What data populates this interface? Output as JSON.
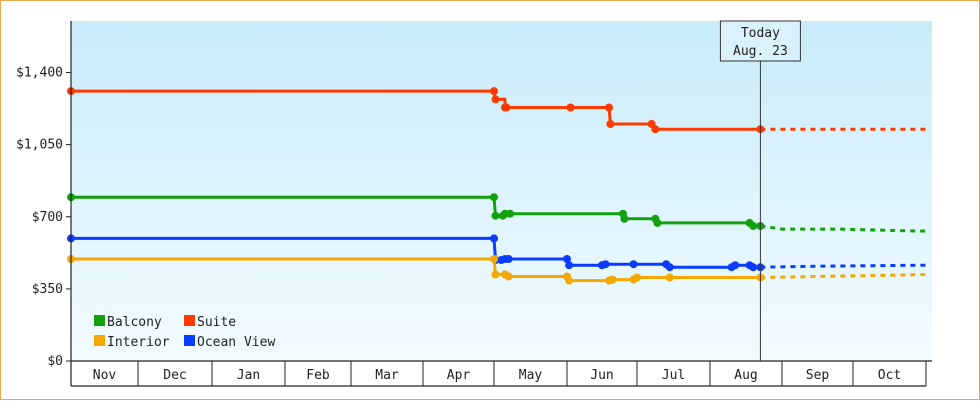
{
  "chart_data": {
    "type": "line",
    "x_axis": {
      "months": [
        "Nov",
        "Dec",
        "Jan",
        "Feb",
        "Mar",
        "Apr",
        "May",
        "Jun",
        "Jul",
        "Aug",
        "Sep",
        "Oct"
      ]
    },
    "y_axis": {
      "ticks": [
        "$0",
        "$350",
        "$700",
        "$1,050",
        "$1,400"
      ],
      "tick_values": [
        0,
        350,
        700,
        1050,
        1400
      ],
      "ylim": [
        0,
        1650
      ]
    },
    "today_marker": {
      "line1": "Today",
      "line2": "Aug. 23",
      "month_position": 9.7
    },
    "legend": {
      "placement": "bottom-left"
    },
    "grid": false,
    "series": [
      {
        "name": "Suite",
        "color": "#ff3a00",
        "points": [
          [
            0,
            1310
          ],
          [
            6,
            1310
          ],
          [
            6.02,
            1270
          ],
          [
            6.15,
            1270
          ],
          [
            6.15,
            1230
          ],
          [
            7.05,
            1230
          ],
          [
            7.6,
            1230
          ],
          [
            7.62,
            1150
          ],
          [
            8.2,
            1150
          ],
          [
            8.25,
            1125
          ],
          [
            9.7,
            1125
          ]
        ],
        "markers": [
          0,
          6,
          6.02,
          6.15,
          6.17,
          7.05,
          7.6,
          7.62,
          8.2,
          8.25,
          9.7
        ],
        "forecast": [
          [
            9.7,
            1125
          ],
          [
            10.5,
            1125
          ],
          [
            12,
            1125
          ]
        ]
      },
      {
        "name": "Balcony",
        "color": "#12a00c",
        "points": [
          [
            0,
            795
          ],
          [
            6,
            795
          ],
          [
            6.02,
            705
          ],
          [
            6.12,
            705
          ],
          [
            6.15,
            715
          ],
          [
            7.8,
            715
          ],
          [
            7.82,
            690
          ],
          [
            8.25,
            690
          ],
          [
            8.28,
            670
          ],
          [
            9.55,
            670
          ],
          [
            9.6,
            655
          ],
          [
            9.7,
            655
          ]
        ],
        "markers": [
          0,
          6,
          6.02,
          6.12,
          6.15,
          6.22,
          7.8,
          7.82,
          8.25,
          8.28,
          9.55,
          9.6,
          9.7
        ],
        "forecast": [
          [
            9.7,
            655
          ],
          [
            10,
            640
          ],
          [
            10.8,
            640
          ],
          [
            12,
            630
          ]
        ]
      },
      {
        "name": "Ocean View",
        "color": "#0a3cff",
        "points": [
          [
            0,
            595
          ],
          [
            6,
            595
          ],
          [
            6.02,
            490
          ],
          [
            6.1,
            490
          ],
          [
            6.15,
            495
          ],
          [
            7,
            495
          ],
          [
            7.03,
            465
          ],
          [
            7.5,
            465
          ],
          [
            7.55,
            470
          ],
          [
            8.4,
            470
          ],
          [
            8.45,
            455
          ],
          [
            9.3,
            455
          ],
          [
            9.35,
            465
          ],
          [
            9.55,
            465
          ],
          [
            9.6,
            455
          ],
          [
            9.7,
            455
          ]
        ],
        "markers": [
          0,
          6,
          6.02,
          6.1,
          6.15,
          6.2,
          7,
          7.03,
          7.5,
          7.55,
          7.95,
          8.4,
          8.45,
          9.3,
          9.35,
          9.55,
          9.6,
          9.7
        ],
        "forecast": [
          [
            9.7,
            455
          ],
          [
            10.5,
            460
          ],
          [
            12,
            465
          ]
        ]
      },
      {
        "name": "Interior",
        "color": "#f5a800",
        "points": [
          [
            0,
            495
          ],
          [
            6,
            495
          ],
          [
            6.02,
            420
          ],
          [
            6.15,
            420
          ],
          [
            6.2,
            410
          ],
          [
            7,
            410
          ],
          [
            7.03,
            390
          ],
          [
            7.6,
            390
          ],
          [
            7.65,
            395
          ],
          [
            7.95,
            395
          ],
          [
            8,
            405
          ],
          [
            9.7,
            405
          ]
        ],
        "markers": [
          0,
          6,
          6.02,
          6.15,
          6.2,
          7,
          7.03,
          7.6,
          7.65,
          7.95,
          8,
          8.45,
          9.7
        ],
        "forecast": [
          [
            9.7,
            405
          ],
          [
            10.5,
            410
          ],
          [
            12,
            420
          ]
        ]
      }
    ]
  }
}
